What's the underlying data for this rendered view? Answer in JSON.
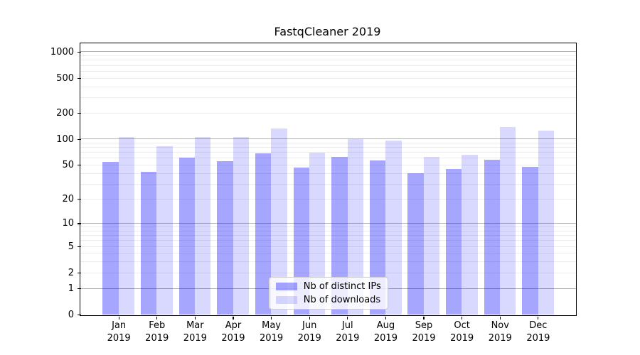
{
  "title": "FastqCleaner 2019",
  "colors": {
    "bar_base": "#0000FF",
    "series_alpha": [
      0.35,
      0.15
    ],
    "grid_major": "#b0b0b0",
    "grid_minor": "#ececec",
    "axis": "#000000",
    "background": "#ffffff",
    "legend_border": "#cccccc"
  },
  "chart_data": {
    "type": "bar",
    "title": "FastqCleaner 2019",
    "categories": [
      "Jan",
      "Feb",
      "Mar",
      "Apr",
      "May",
      "Jun",
      "Jul",
      "Aug",
      "Sep",
      "Oct",
      "Nov",
      "Dec"
    ],
    "category_year": "2019",
    "series": [
      {
        "name": "Nb of distinct IPs",
        "color": "#0000FF",
        "alpha": 0.35,
        "values": [
          54,
          42,
          61,
          56,
          68,
          47,
          62,
          57,
          40,
          45,
          58,
          48
        ]
      },
      {
        "name": "Nb of downloads",
        "color": "#0000FF",
        "alpha": 0.15,
        "values": [
          106,
          82,
          106,
          105,
          132,
          70,
          100,
          96,
          62,
          66,
          138,
          125
        ]
      }
    ],
    "xlabel": "",
    "ylabel": "",
    "yscale": "log1p",
    "yticks": [
      0,
      1,
      2,
      5,
      10,
      20,
      50,
      100,
      200,
      500,
      1000
    ],
    "ylim": [
      0,
      1258
    ],
    "grid": {
      "major_values": [
        1,
        10,
        100,
        1000
      ],
      "minor_values": [
        2,
        3,
        4,
        5,
        6,
        7,
        8,
        9,
        20,
        30,
        40,
        50,
        60,
        70,
        80,
        90,
        200,
        300,
        400,
        500,
        600,
        700,
        800,
        900
      ]
    },
    "legend_position": "lower center"
  }
}
